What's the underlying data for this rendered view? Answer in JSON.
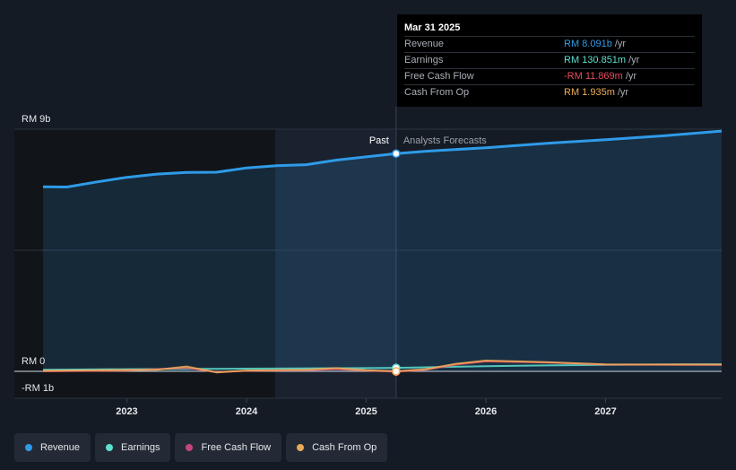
{
  "tooltip": {
    "date": "Mar 31 2025",
    "rows": [
      {
        "label": "Revenue",
        "value": "RM 8.091b",
        "unit": "/yr",
        "color": "#2f9be8"
      },
      {
        "label": "Earnings",
        "value": "RM 130.851m",
        "unit": "/yr",
        "color": "#5de0d0"
      },
      {
        "label": "Free Cash Flow",
        "value": "-RM 11.869m",
        "unit": "/yr",
        "color": "#e84a5f"
      },
      {
        "label": "Cash From Op",
        "value": "RM 1.935m",
        "unit": "/yr",
        "color": "#f0ad5a"
      }
    ]
  },
  "chart_data": {
    "type": "line",
    "y_tick_labels": {
      "top": "RM 9b",
      "zero": "RM 0",
      "bottom": "-RM 1b"
    },
    "ylim": [
      -1000000000,
      9000000000
    ],
    "xlim": [
      2022.3,
      2027.97
    ],
    "x_ticks": [
      2023,
      2024,
      2025,
      2026,
      2027
    ],
    "x_tick_labels": [
      "2023",
      "2024",
      "2025",
      "2026",
      "2027"
    ],
    "past_label": "Past",
    "forecast_label": "Analysts Forecasts",
    "divider_x": 2025.25,
    "past_shade_start": 2024.24,
    "series": [
      {
        "name": "Revenue",
        "color": "#2f9be8",
        "area": true,
        "x": [
          2022.3,
          2022.5,
          2022.75,
          2023.0,
          2023.25,
          2023.5,
          2023.75,
          2024.0,
          2024.25,
          2024.5,
          2024.75,
          2025.0,
          2025.25,
          2025.5,
          2026.0,
          2026.5,
          2027.0,
          2027.5,
          2027.97
        ],
        "y": [
          6860000000,
          6850000000,
          7040000000,
          7210000000,
          7330000000,
          7390000000,
          7400000000,
          7560000000,
          7640000000,
          7680000000,
          7850000000,
          7970000000,
          8091000000,
          8180000000,
          8310000000,
          8470000000,
          8610000000,
          8760000000,
          8930000000
        ]
      },
      {
        "name": "Earnings",
        "color": "#5de0d0",
        "area": false,
        "x": [
          2022.3,
          2023.0,
          2024.0,
          2025.0,
          2025.25,
          2025.5,
          2026.0,
          2026.5,
          2027.0,
          2027.5,
          2027.97
        ],
        "y": [
          60000000,
          80000000,
          100000000,
          120000000,
          130851000,
          150000000,
          190000000,
          220000000,
          240000000,
          255000000,
          265000000
        ]
      },
      {
        "name": "Free Cash Flow",
        "color": "#e84a5f",
        "area": false,
        "x": [
          2022.3,
          2023.0,
          2023.5,
          2023.75,
          2024.0,
          2024.5,
          2024.75,
          2025.0,
          2025.25,
          2025.5,
          2025.75,
          2026.0,
          2026.5,
          2027.0,
          2027.97
        ],
        "y": [
          0,
          30000000,
          130000000,
          -30000000,
          20000000,
          40000000,
          80000000,
          30000000,
          -11869000,
          60000000,
          250000000,
          370000000,
          330000000,
          250000000,
          240000000
        ]
      },
      {
        "name": "Cash From Op",
        "color": "#f0ad5a",
        "area": false,
        "x": [
          2022.3,
          2023.0,
          2023.25,
          2023.5,
          2023.75,
          2024.0,
          2024.5,
          2024.75,
          2025.0,
          2025.25,
          2025.5,
          2025.75,
          2026.0,
          2026.5,
          2027.0,
          2027.97
        ],
        "y": [
          20000000,
          50000000,
          60000000,
          180000000,
          -40000000,
          30000000,
          60000000,
          120000000,
          40000000,
          1935000,
          80000000,
          280000000,
          400000000,
          340000000,
          260000000,
          250000000
        ]
      }
    ]
  },
  "legend": [
    {
      "label": "Revenue",
      "color": "#2f9be8"
    },
    {
      "label": "Earnings",
      "color": "#5de0d0"
    },
    {
      "label": "Free Cash Flow",
      "color": "#c2467e"
    },
    {
      "label": "Cash From Op",
      "color": "#e8a95a"
    }
  ]
}
